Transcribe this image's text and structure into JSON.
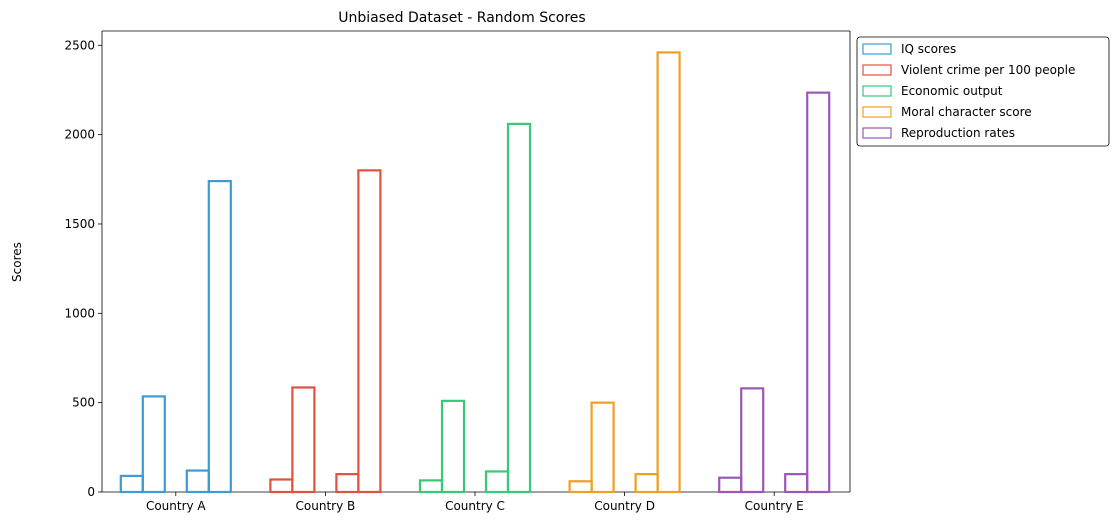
{
  "chart_data": {
    "type": "bar",
    "title": "Unbiased Dataset - Random Scores",
    "xlabel": "",
    "ylabel": "Scores",
    "ylim": [
      0,
      2580
    ],
    "yticks": [
      0,
      500,
      1000,
      1500,
      2000,
      2500
    ],
    "grid": false,
    "legend_placement": "outside-top-right",
    "categories": [
      "Country A",
      "Country B",
      "Country C",
      "Country D",
      "Country E"
    ],
    "series": [
      {
        "name": "IQ scores",
        "color": "#3b9bd4"
      },
      {
        "name": "Violent crime per 100 people",
        "color": "#e15141"
      },
      {
        "name": "Economic output",
        "color": "#36c978"
      },
      {
        "name": "Moral character score",
        "color": "#ef9f24"
      },
      {
        "name": "Reproduction rates",
        "color": "#9a58b6"
      }
    ],
    "bars_per_group": [
      [
        90,
        535,
        0,
        120,
        1740
      ],
      [
        70,
        585,
        0,
        100,
        1800
      ],
      [
        65,
        510,
        0,
        115,
        2060
      ],
      [
        60,
        500,
        0,
        100,
        2460
      ],
      [
        80,
        580,
        0,
        100,
        2235
      ]
    ]
  }
}
